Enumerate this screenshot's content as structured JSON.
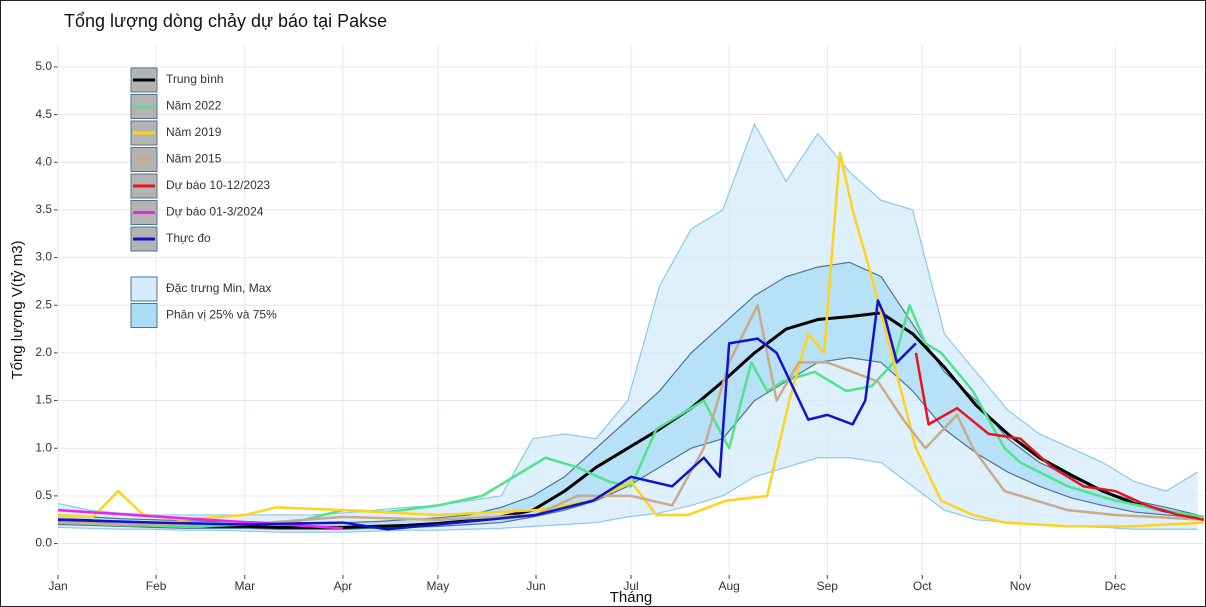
{
  "chart_data": {
    "type": "line",
    "title": "Tổng lượng dòng chảy dự báo tại Pakse",
    "x_label": "Tháng",
    "y_label": "Tổng lượng V(tỷ m3)",
    "xlim": [
      1,
      363
    ],
    "ylim": [
      -0.33,
      5.23
    ],
    "grid": true,
    "legend": "top-left",
    "xticks": [
      {
        "value": 1,
        "label": "Jan"
      },
      {
        "value": 32,
        "label": "Feb"
      },
      {
        "value": 60,
        "label": "Mar"
      },
      {
        "value": 91,
        "label": "Apr"
      },
      {
        "value": 121,
        "label": "May"
      },
      {
        "value": 152,
        "label": "Jun"
      },
      {
        "value": 182,
        "label": "Jul"
      },
      {
        "value": 213,
        "label": "Aug"
      },
      {
        "value": 244,
        "label": "Sep"
      },
      {
        "value": 274,
        "label": "Oct"
      },
      {
        "value": 305,
        "label": "Nov"
      },
      {
        "value": 335,
        "label": "Dec"
      }
    ],
    "yticks": [
      {
        "value": 0,
        "label": "0.0"
      },
      0.5,
      {
        "value": 1,
        "label": "1.0"
      },
      1.5,
      {
        "value": 2,
        "label": "2.0"
      },
      2.5,
      {
        "value": 3,
        "label": "3.0"
      },
      3.5,
      {
        "value": 4,
        "label": "4.0"
      },
      4.5,
      {
        "value": 5,
        "label": "5.0"
      }
    ],
    "bands": [
      {
        "name": "Đặc trưng Min, Max",
        "color": "#d3ebfa",
        "edge": "#8cc9ea",
        "x": [
          1,
          11,
          21,
          31,
          41,
          51,
          61,
          71,
          81,
          91,
          101,
          111,
          121,
          131,
          141,
          151,
          161,
          171,
          181,
          191,
          201,
          211,
          221,
          231,
          241,
          251,
          261,
          271,
          281,
          291,
          301,
          311,
          321,
          331,
          341,
          351,
          361
        ],
        "lower": [
          0.17,
          0.16,
          0.15,
          0.15,
          0.14,
          0.14,
          0.13,
          0.12,
          0.12,
          0.12,
          0.13,
          0.14,
          0.14,
          0.15,
          0.16,
          0.18,
          0.2,
          0.22,
          0.28,
          0.32,
          0.4,
          0.5,
          0.7,
          0.8,
          0.9,
          0.9,
          0.85,
          0.6,
          0.35,
          0.25,
          0.22,
          0.2,
          0.18,
          0.17,
          0.15,
          0.15,
          0.15
        ],
        "upper": [
          0.42,
          0.35,
          0.32,
          0.3,
          0.3,
          0.3,
          0.3,
          0.3,
          0.3,
          0.32,
          0.35,
          0.38,
          0.4,
          0.45,
          0.5,
          1.1,
          1.15,
          1.1,
          1.5,
          2.7,
          3.3,
          3.5,
          4.4,
          3.8,
          4.3,
          3.9,
          3.6,
          3.5,
          2.2,
          1.8,
          1.4,
          1.15,
          1.0,
          0.85,
          0.65,
          0.55,
          0.75
        ]
      },
      {
        "name": "Phân vị 25% và 75%",
        "color": "#a9dcf5",
        "edge": "#4f7493",
        "x": [
          1,
          11,
          21,
          31,
          41,
          51,
          61,
          71,
          81,
          91,
          101,
          111,
          121,
          131,
          141,
          151,
          161,
          171,
          181,
          191,
          201,
          211,
          221,
          231,
          241,
          251,
          261,
          271,
          281,
          291,
          301,
          311,
          321,
          331,
          341,
          351,
          361
        ],
        "lower": [
          0.2,
          0.19,
          0.18,
          0.17,
          0.16,
          0.16,
          0.16,
          0.15,
          0.15,
          0.15,
          0.16,
          0.17,
          0.18,
          0.2,
          0.22,
          0.28,
          0.35,
          0.45,
          0.6,
          0.8,
          1.0,
          1.1,
          1.5,
          1.7,
          1.9,
          1.95,
          1.9,
          1.6,
          1.2,
          0.95,
          0.75,
          0.6,
          0.48,
          0.4,
          0.33,
          0.3,
          0.27
        ],
        "upper": [
          0.3,
          0.28,
          0.26,
          0.25,
          0.24,
          0.23,
          0.23,
          0.22,
          0.22,
          0.22,
          0.23,
          0.25,
          0.27,
          0.3,
          0.38,
          0.5,
          0.7,
          1.0,
          1.3,
          1.6,
          2.0,
          2.3,
          2.6,
          2.8,
          2.9,
          2.95,
          2.8,
          2.3,
          1.8,
          1.5,
          1.1,
          0.85,
          0.7,
          0.55,
          0.45,
          0.38,
          0.3
        ]
      }
    ],
    "series": [
      {
        "name": "Trung bình",
        "color": "#000000",
        "x": [
          1,
          11,
          21,
          31,
          41,
          51,
          61,
          71,
          81,
          91,
          101,
          111,
          121,
          131,
          141,
          151,
          161,
          171,
          181,
          191,
          201,
          211,
          221,
          231,
          241,
          251,
          261,
          271,
          281,
          291,
          301,
          311,
          321,
          331,
          341,
          351,
          361
        ],
        "values": [
          0.25,
          0.24,
          0.22,
          0.2,
          0.19,
          0.18,
          0.18,
          0.17,
          0.17,
          0.17,
          0.18,
          0.19,
          0.21,
          0.24,
          0.28,
          0.35,
          0.55,
          0.8,
          1.0,
          1.2,
          1.42,
          1.7,
          2.0,
          2.25,
          2.35,
          2.38,
          2.42,
          2.2,
          1.85,
          1.45,
          1.15,
          0.9,
          0.72,
          0.55,
          0.42,
          0.34,
          0.28
        ]
      },
      {
        "name": "Năm 2022",
        "color": "#4fe38c",
        "x": [
          1,
          15,
          30,
          45,
          60,
          75,
          91,
          105,
          121,
          135,
          145,
          155,
          165,
          175,
          182,
          190,
          200,
          205,
          213,
          220,
          225,
          230,
          240,
          250,
          258,
          265,
          270,
          275,
          280,
          290,
          300,
          305,
          320,
          335,
          350,
          363
        ],
        "values": [
          0.25,
          0.2,
          0.19,
          0.18,
          0.2,
          0.22,
          0.35,
          0.33,
          0.4,
          0.5,
          0.7,
          0.9,
          0.8,
          0.65,
          0.6,
          1.2,
          1.4,
          1.5,
          1.0,
          1.9,
          1.6,
          1.7,
          1.8,
          1.6,
          1.65,
          1.9,
          2.5,
          2.1,
          2.0,
          1.6,
          1.0,
          0.85,
          0.6,
          0.45,
          0.35,
          0.28
        ]
      },
      {
        "name": "Năm 2019",
        "color": "#ffd21c",
        "x": [
          1,
          12,
          20,
          28,
          40,
          60,
          70,
          91,
          121,
          152,
          170,
          182,
          190,
          200,
          212,
          225,
          232,
          238,
          243,
          248,
          252,
          258,
          265,
          272,
          280,
          290,
          300,
          320,
          340,
          363
        ],
        "values": [
          0.3,
          0.28,
          0.55,
          0.3,
          0.25,
          0.3,
          0.38,
          0.35,
          0.3,
          0.35,
          0.45,
          0.65,
          0.3,
          0.3,
          0.45,
          0.5,
          1.5,
          2.2,
          2.0,
          4.1,
          3.5,
          2.8,
          1.9,
          1.0,
          0.45,
          0.3,
          0.22,
          0.18,
          0.18,
          0.22
        ]
      },
      {
        "name": "Năm 2015",
        "color": "#c9aa8a",
        "x": [
          1,
          32,
          60,
          91,
          121,
          152,
          165,
          182,
          195,
          205,
          213,
          222,
          228,
          235,
          244,
          252,
          260,
          268,
          275,
          285,
          290,
          300,
          320,
          335,
          363
        ],
        "values": [
          0.22,
          0.2,
          0.2,
          0.28,
          0.25,
          0.3,
          0.5,
          0.5,
          0.4,
          1.0,
          1.9,
          2.5,
          1.5,
          1.9,
          1.9,
          1.8,
          1.7,
          1.3,
          1.0,
          1.35,
          1.0,
          0.55,
          0.35,
          0.3,
          0.25
        ]
      },
      {
        "name": "Dự báo 10-12/2023",
        "color": "#e8141c",
        "x": [
          272,
          276,
          285,
          295,
          305,
          315,
          325,
          335,
          345,
          355,
          363
        ],
        "values": [
          2.0,
          1.25,
          1.42,
          1.15,
          1.1,
          0.8,
          0.6,
          0.55,
          0.4,
          0.3,
          0.25
        ]
      },
      {
        "name": "Dự báo 01-3/2024",
        "color": "#ee22ee",
        "x": [
          1,
          91
        ],
        "values": [
          0.35,
          0.16
        ]
      },
      {
        "name": "Thực đo",
        "color": "#1212cc",
        "x": [
          1,
          32,
          60,
          91,
          105,
          121,
          152,
          170,
          182,
          195,
          205,
          210,
          213,
          222,
          228,
          238,
          244,
          252,
          256,
          260,
          262,
          266,
          272
        ],
        "values": [
          0.25,
          0.22,
          0.2,
          0.22,
          0.15,
          0.2,
          0.3,
          0.45,
          0.7,
          0.6,
          0.9,
          0.7,
          2.1,
          2.15,
          2.0,
          1.3,
          1.35,
          1.25,
          1.5,
          2.55,
          2.4,
          1.9,
          2.1
        ]
      }
    ]
  }
}
